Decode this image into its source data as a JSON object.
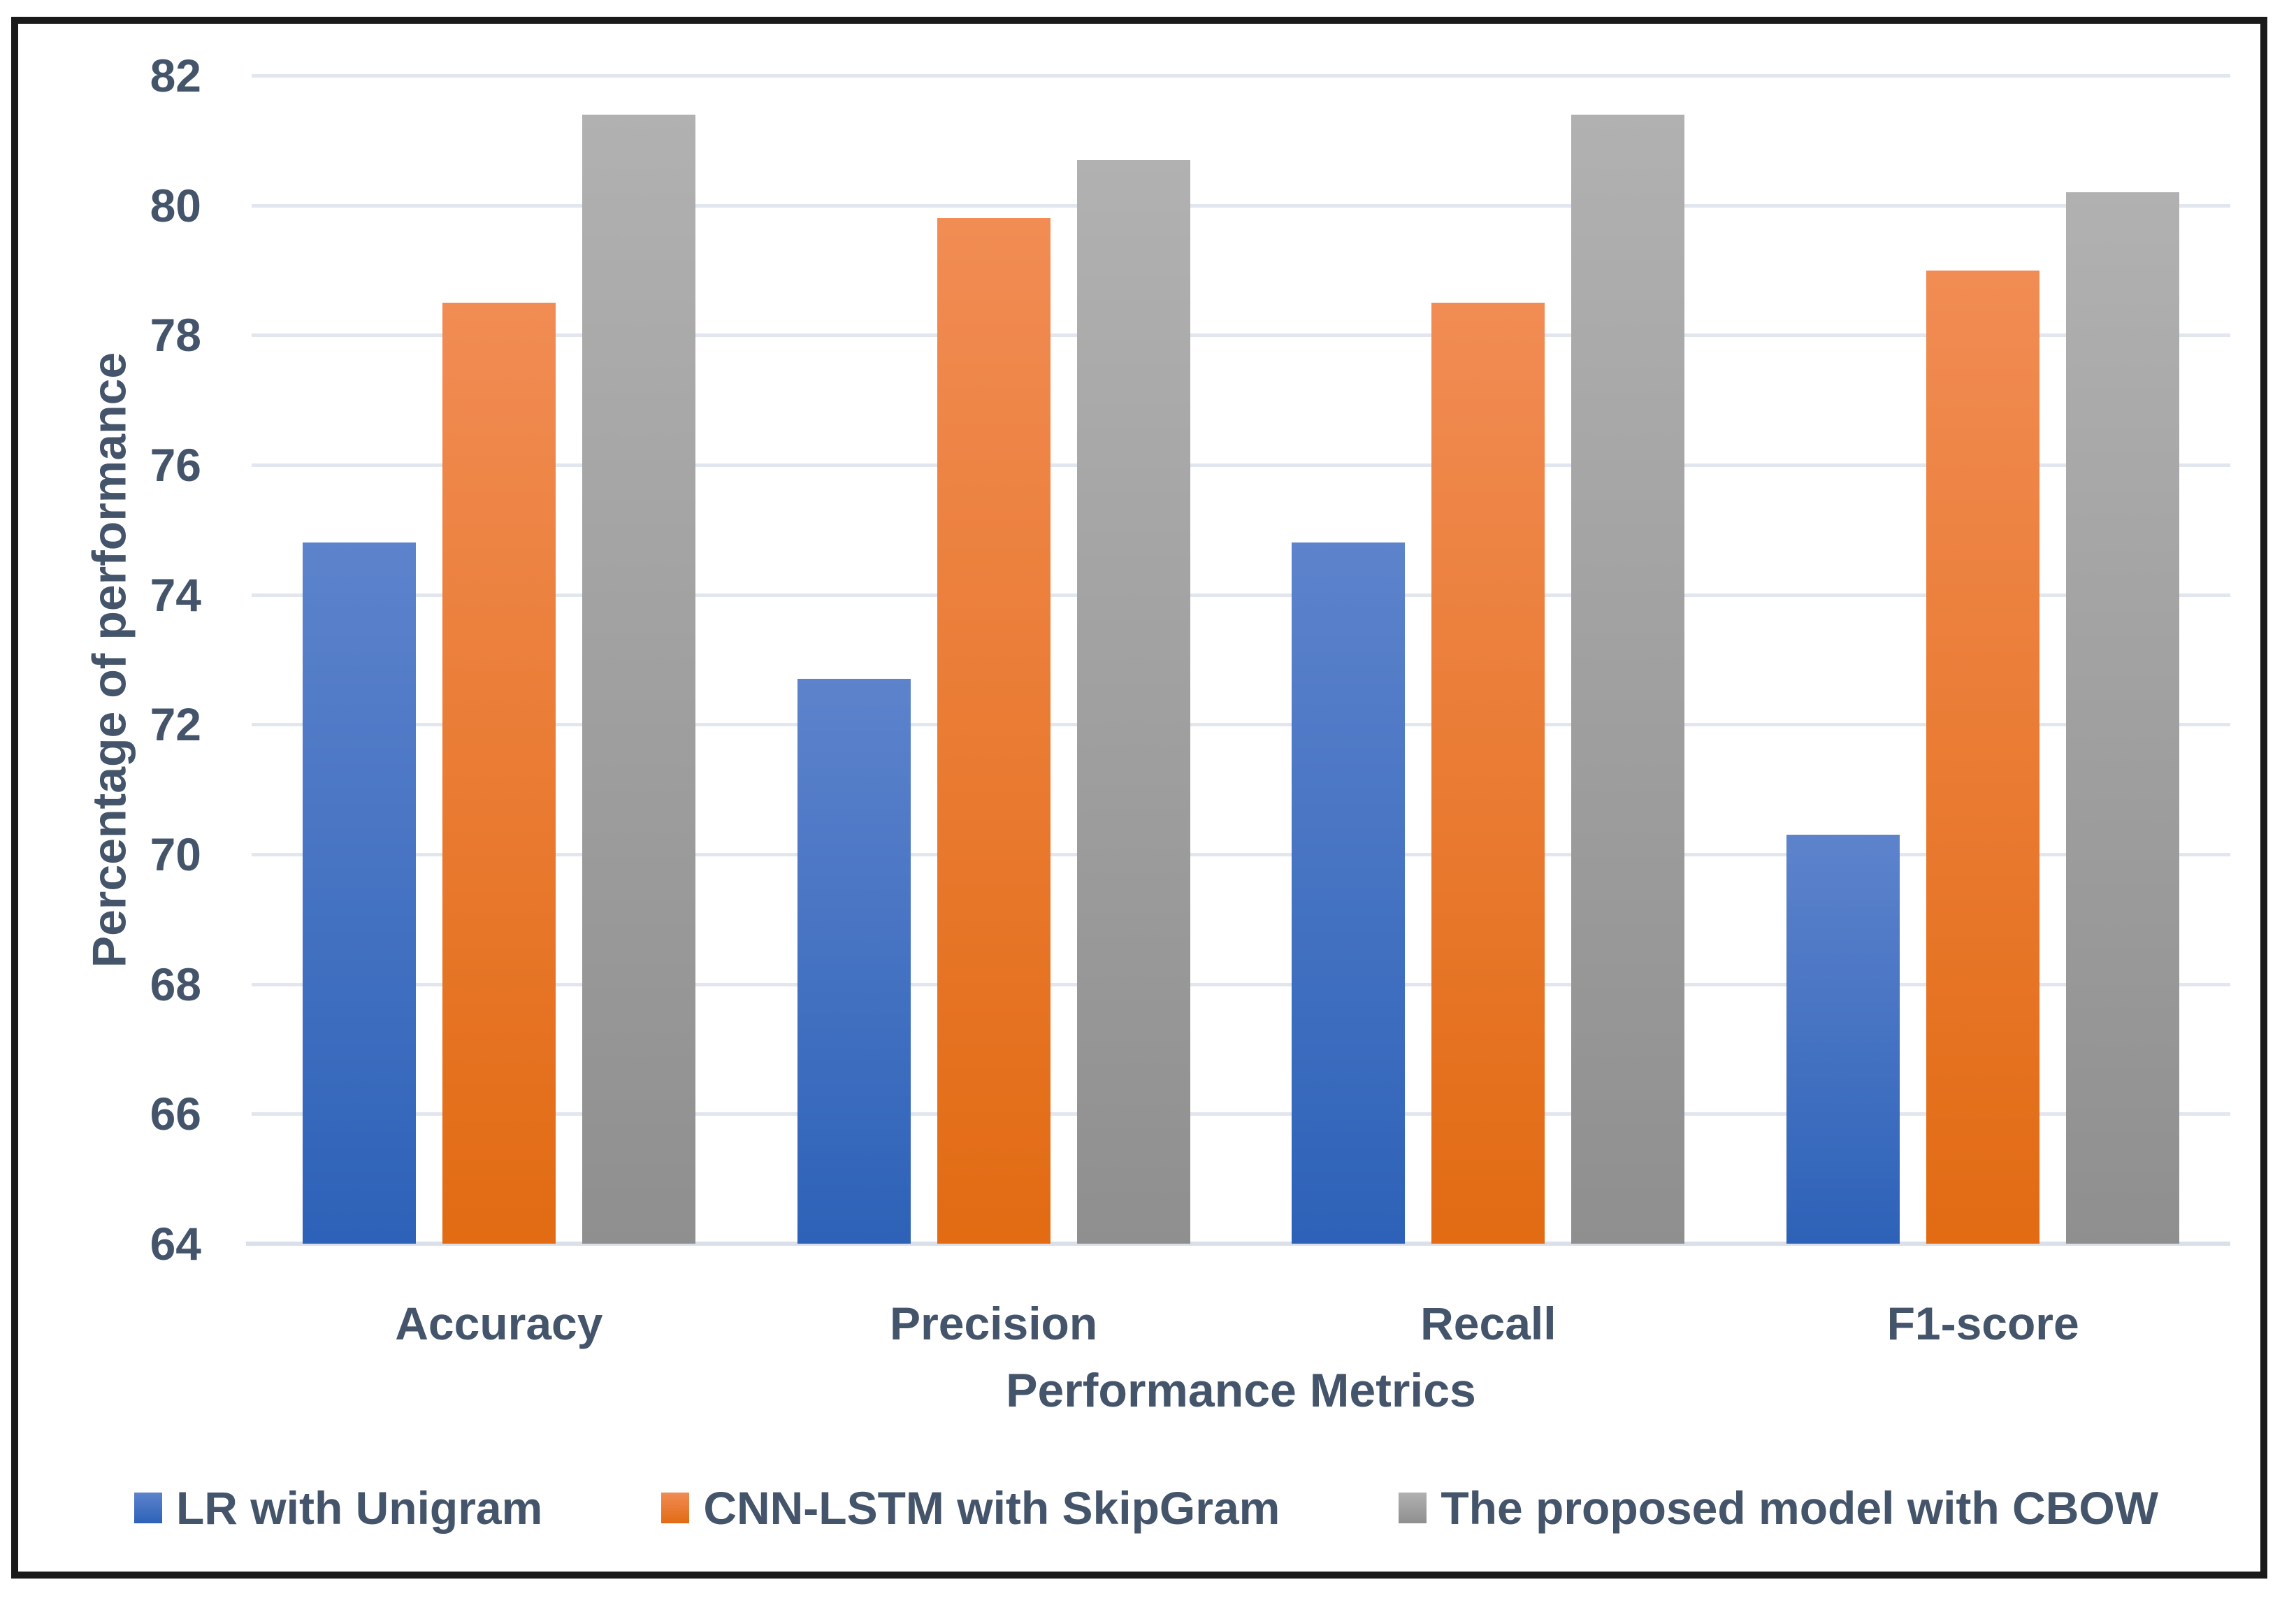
{
  "chart_data": {
    "type": "bar",
    "categories": [
      "Accuracy",
      "Precision",
      "Recall",
      "F1-score"
    ],
    "series": [
      {
        "name": "LR with Unigram",
        "color": "#4472C4",
        "gradient_top": "#5D83CC",
        "gradient_bottom": "#2D62B8",
        "values": [
          74.8,
          72.7,
          74.8,
          70.3
        ]
      },
      {
        "name": "CNN-LSTM with SkipGram",
        "color": "#ED7D31",
        "gradient_top": "#F18C54",
        "gradient_bottom": "#E26B13",
        "values": [
          78.5,
          79.8,
          78.5,
          79.0
        ]
      },
      {
        "name": "The proposed model with CBOW",
        "color": "#A5A5A5",
        "gradient_top": "#B1B1B1",
        "gradient_bottom": "#8F8F8F",
        "values": [
          81.4,
          80.7,
          81.4,
          80.2
        ]
      }
    ],
    "xlabel": "Performance Metrics",
    "ylabel": "Percentage of performance",
    "ylim": [
      64,
      82
    ],
    "ytick_step": 2,
    "yticks": [
      64,
      66,
      68,
      70,
      72,
      74,
      76,
      78,
      80,
      82
    ],
    "grid": true,
    "legend_position": "bottom",
    "axis_text_color": "#44546A",
    "gridline_color": "#E2E6EE",
    "figure_border_color": "#1A1A1A"
  }
}
